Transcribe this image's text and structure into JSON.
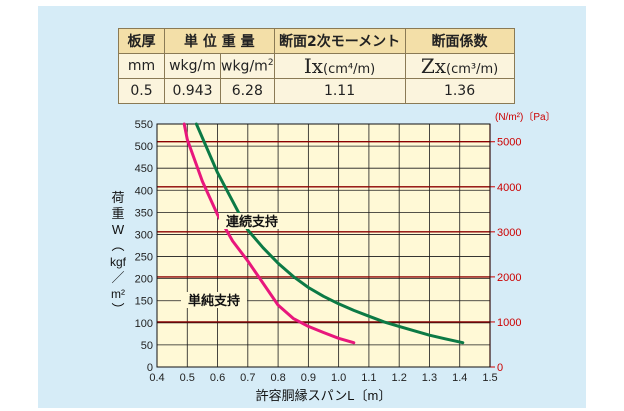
{
  "table": {
    "headers": [
      "板厚",
      "単 位 重 量",
      "断面2次モーメント",
      "断面係数"
    ],
    "units": {
      "thickness": "mm",
      "weight_kgm": "wkg/m",
      "weight_kgm2_base": "wkg/m",
      "weight_kgm2_sup": "2",
      "ix_main": "Ix",
      "ix_unit": "(cm⁴/m)",
      "zx_main": "Zx",
      "zx_unit": "(cm³/m)"
    },
    "values": {
      "thickness": "0.5",
      "weight_kgm": "0.943",
      "weight_kgm2": "6.28",
      "ix": "1.11",
      "zx": "1.36"
    }
  },
  "chart_data": {
    "type": "line",
    "xlabel": "許容胴縁スパンL〔m〕",
    "ylabel_chars": [
      "荷",
      "重",
      "W",
      "︵",
      "kgf",
      "／",
      "m²",
      "︶"
    ],
    "y2label": "(N/m²)〔Pa〕",
    "x_ticks": [
      "0.4",
      "0.5",
      "0.6",
      "0.7",
      "0.8",
      "0.9",
      "1.0",
      "1.1",
      "1.2",
      "1.3",
      "1.4",
      "1.5"
    ],
    "y_ticks": [
      "0",
      "50",
      "100",
      "150",
      "200",
      "250",
      "300",
      "350",
      "400",
      "450",
      "500",
      "550"
    ],
    "y2_ticks": [
      "0",
      "1000",
      "2000",
      "3000",
      "4000",
      "5000"
    ],
    "xlim": [
      0.4,
      1.5
    ],
    "ylim": [
      0,
      550
    ],
    "y2_per_y": 9.80665,
    "grid": true,
    "series": [
      {
        "name": "単純支持",
        "color": "#e8177c",
        "points": [
          [
            0.49,
            550
          ],
          [
            0.5,
            515
          ],
          [
            0.55,
            420
          ],
          [
            0.6,
            345
          ],
          [
            0.65,
            285
          ],
          [
            0.7,
            240
          ],
          [
            0.75,
            190
          ],
          [
            0.8,
            140
          ],
          [
            0.85,
            110
          ],
          [
            0.9,
            92
          ],
          [
            0.95,
            78
          ],
          [
            1.0,
            65
          ],
          [
            1.05,
            55
          ]
        ]
      },
      {
        "name": "連続支持",
        "color": "#0c7a45",
        "points": [
          [
            0.53,
            550
          ],
          [
            0.6,
            440
          ],
          [
            0.65,
            375
          ],
          [
            0.7,
            310
          ],
          [
            0.75,
            270
          ],
          [
            0.8,
            235
          ],
          [
            0.85,
            205
          ],
          [
            0.9,
            180
          ],
          [
            0.95,
            160
          ],
          [
            1.0,
            143
          ],
          [
            1.05,
            128
          ],
          [
            1.1,
            115
          ],
          [
            1.15,
            102
          ],
          [
            1.2,
            92
          ],
          [
            1.25,
            82
          ],
          [
            1.3,
            72
          ],
          [
            1.35,
            64
          ],
          [
            1.41,
            55
          ]
        ]
      }
    ],
    "red_gridlines_y2": [
      1000,
      2000,
      3000,
      4000,
      5000
    ],
    "colors": {
      "grid": "#1a1a1a",
      "red_grid": "#8b0000",
      "right_axis": "#cc0000",
      "panel": "#d6ecf7",
      "plot_bg": "#fff9d6"
    }
  }
}
